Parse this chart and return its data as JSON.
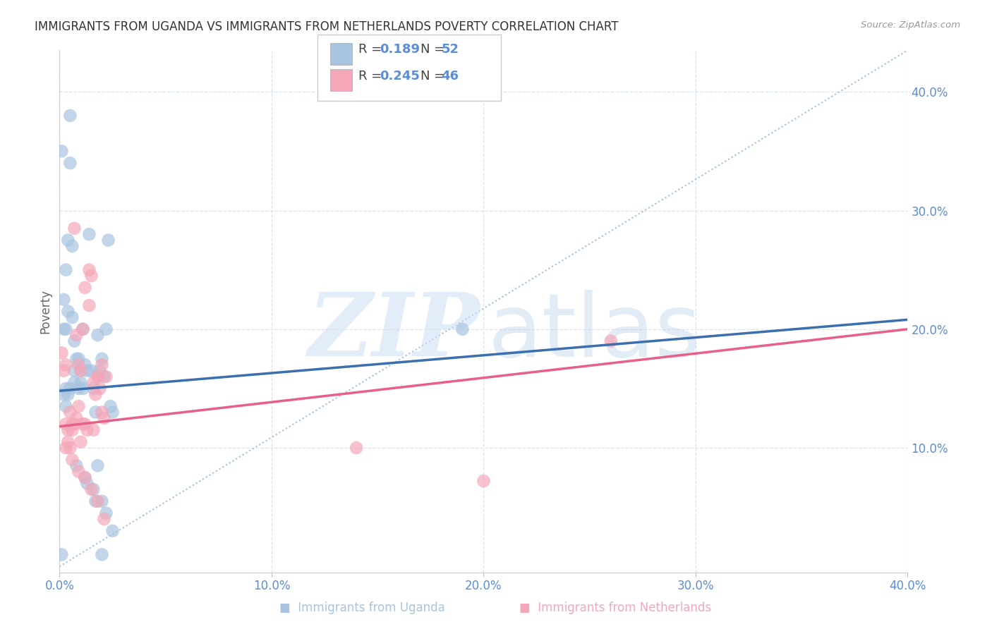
{
  "title": "IMMIGRANTS FROM UGANDA VS IMMIGRANTS FROM NETHERLANDS POVERTY CORRELATION CHART",
  "source": "Source: ZipAtlas.com",
  "ylabel": "Poverty",
  "uganda_R": 0.189,
  "uganda_N": 52,
  "netherlands_R": 0.245,
  "netherlands_N": 46,
  "uganda_color": "#a8c4e0",
  "netherlands_color": "#f4a7b9",
  "uganda_line_color": "#3b6fad",
  "netherlands_line_color": "#e8608a",
  "diagonal_color": "#96b8d8",
  "grid_color": "#d8e4f0",
  "axis_label_color": "#5b8dd9",
  "xlim": [
    0.0,
    0.4
  ],
  "ylim": [
    -0.005,
    0.435
  ],
  "ytick_vals": [
    0.1,
    0.2,
    0.3,
    0.4
  ],
  "xtick_vals": [
    0.0,
    0.1,
    0.2,
    0.3,
    0.4
  ],
  "uganda_line_x0": 0.0,
  "uganda_line_y0": 0.148,
  "uganda_line_x1": 0.4,
  "uganda_line_y1": 0.208,
  "netherlands_line_x0": 0.0,
  "netherlands_line_y0": 0.118,
  "netherlands_line_x1": 0.4,
  "netherlands_line_y1": 0.2,
  "uganda_x": [
    0.005,
    0.005,
    0.007,
    0.009,
    0.01,
    0.011,
    0.012,
    0.013,
    0.014,
    0.015,
    0.016,
    0.017,
    0.018,
    0.019,
    0.02,
    0.021,
    0.022,
    0.023,
    0.024,
    0.025,
    0.003,
    0.003,
    0.004,
    0.004,
    0.006,
    0.007,
    0.008,
    0.009,
    0.01,
    0.011,
    0.002,
    0.002,
    0.002,
    0.003,
    0.003,
    0.004,
    0.005,
    0.006,
    0.007,
    0.008,
    0.012,
    0.013,
    0.016,
    0.017,
    0.018,
    0.02,
    0.022,
    0.025,
    0.001,
    0.001,
    0.19,
    0.02
  ],
  "uganda_y": [
    0.38,
    0.34,
    0.155,
    0.175,
    0.155,
    0.2,
    0.17,
    0.165,
    0.28,
    0.165,
    0.15,
    0.13,
    0.195,
    0.165,
    0.175,
    0.16,
    0.2,
    0.275,
    0.135,
    0.13,
    0.25,
    0.135,
    0.275,
    0.215,
    0.21,
    0.165,
    0.175,
    0.15,
    0.165,
    0.15,
    0.225,
    0.2,
    0.145,
    0.15,
    0.2,
    0.145,
    0.15,
    0.27,
    0.19,
    0.085,
    0.075,
    0.07,
    0.065,
    0.055,
    0.085,
    0.055,
    0.045,
    0.03,
    0.35,
    0.01,
    0.2,
    0.01
  ],
  "netherlands_x": [
    0.003,
    0.004,
    0.005,
    0.006,
    0.007,
    0.008,
    0.009,
    0.01,
    0.011,
    0.012,
    0.013,
    0.014,
    0.015,
    0.016,
    0.017,
    0.018,
    0.019,
    0.02,
    0.021,
    0.022,
    0.002,
    0.003,
    0.004,
    0.005,
    0.006,
    0.007,
    0.008,
    0.009,
    0.01,
    0.001,
    0.011,
    0.012,
    0.014,
    0.016,
    0.018,
    0.02,
    0.003,
    0.006,
    0.009,
    0.012,
    0.015,
    0.018,
    0.021,
    0.14,
    0.2,
    0.26
  ],
  "netherlands_y": [
    0.12,
    0.105,
    0.1,
    0.115,
    0.12,
    0.125,
    0.135,
    0.105,
    0.12,
    0.12,
    0.115,
    0.25,
    0.245,
    0.115,
    0.145,
    0.16,
    0.15,
    0.13,
    0.125,
    0.16,
    0.165,
    0.17,
    0.115,
    0.13,
    0.12,
    0.285,
    0.195,
    0.17,
    0.165,
    0.18,
    0.2,
    0.235,
    0.22,
    0.155,
    0.16,
    0.17,
    0.1,
    0.09,
    0.08,
    0.075,
    0.065,
    0.055,
    0.04,
    0.1,
    0.072,
    0.19
  ]
}
